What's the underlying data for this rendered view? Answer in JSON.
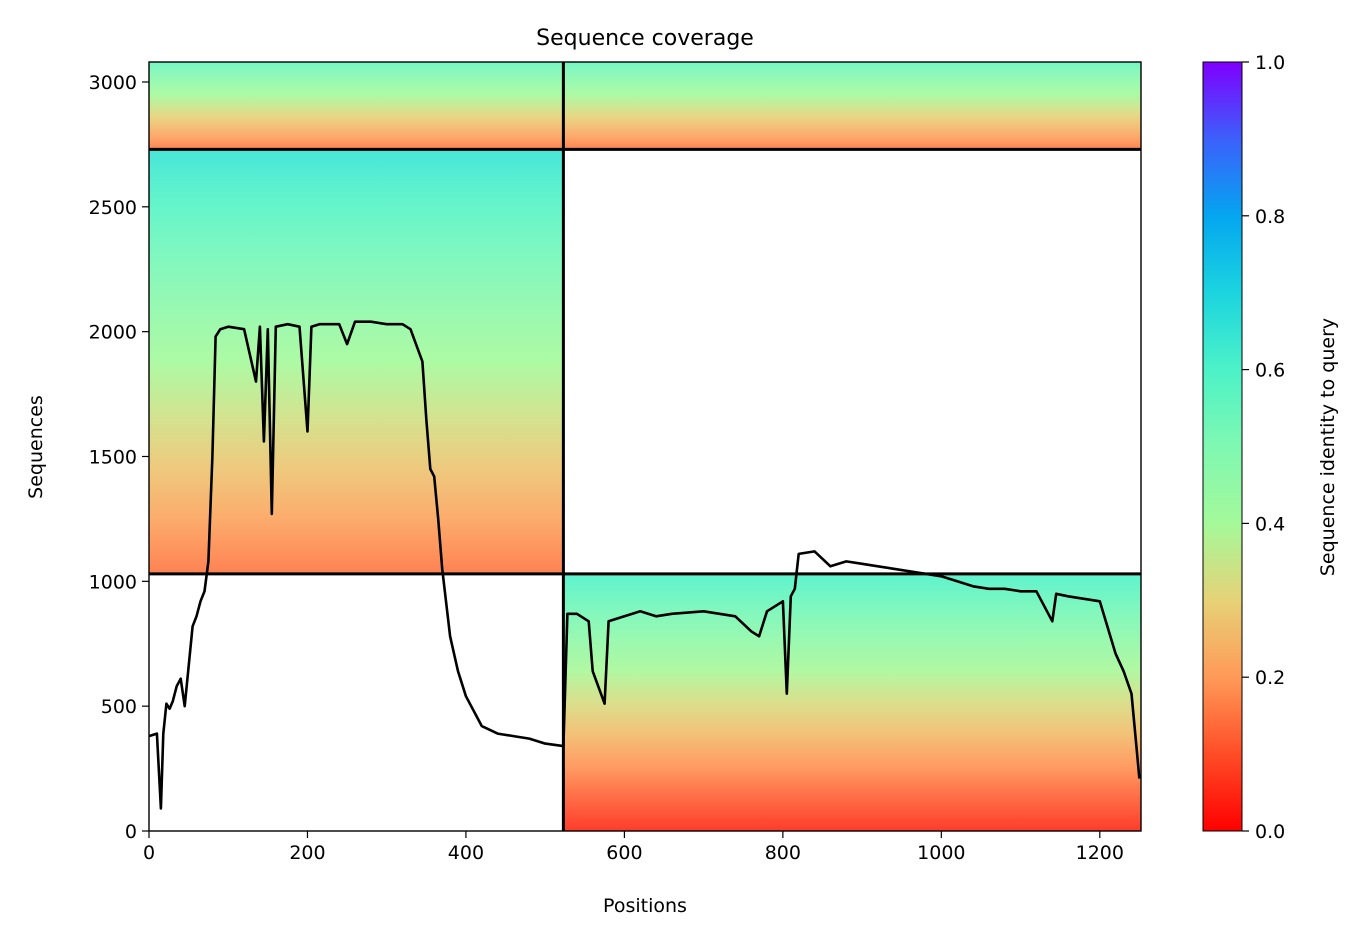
{
  "chart_data": {
    "type": "heatmap",
    "title": "Sequence coverage",
    "xlabel": "Positions",
    "ylabel": "Sequences",
    "xlim": [
      0,
      1252
    ],
    "ylim": [
      0,
      3080
    ],
    "xticks": [
      0,
      200,
      400,
      600,
      800,
      1000,
      1200
    ],
    "yticks": [
      0,
      500,
      1000,
      1500,
      2000,
      2500,
      3000
    ],
    "colorbar": {
      "label": "Sequence identity to query",
      "range": [
        0,
        1
      ],
      "ticks": [
        "0.0",
        "0.2",
        "0.4",
        "0.6",
        "0.8",
        "1.0"
      ],
      "colormap": "rainbow_r"
    },
    "divider_lines": {
      "vertical_x": [
        523
      ],
      "horizontal_y": [
        1030,
        2730
      ]
    },
    "coverage_blocks": [
      {
        "x": [
          0,
          523
        ],
        "y": [
          2730,
          3080
        ],
        "identity_top": 0.55,
        "identity_bottom": 0.15
      },
      {
        "x": [
          523,
          1252
        ],
        "y": [
          2730,
          3080
        ],
        "identity_top": 0.55,
        "identity_bottom": 0.15
      },
      {
        "x": [
          0,
          523
        ],
        "y": [
          1030,
          2730
        ],
        "identity_top": 0.65,
        "identity_bottom": 0.15
      },
      {
        "x": [
          523,
          1252
        ],
        "y": [
          0,
          1030
        ],
        "identity_top": 0.6,
        "identity_bottom": 0.05
      }
    ],
    "coverage_line": {
      "x": [
        0,
        10,
        15,
        18,
        22,
        26,
        30,
        35,
        40,
        45,
        55,
        60,
        65,
        70,
        75,
        80,
        84,
        90,
        100,
        120,
        135,
        140,
        145,
        150,
        155,
        160,
        175,
        190,
        200,
        205,
        215,
        240,
        250,
        260,
        280,
        300,
        320,
        330,
        345,
        350,
        355,
        360,
        365,
        370,
        380,
        390,
        400,
        420,
        440,
        460,
        480,
        500,
        523,
        528,
        540,
        555,
        560,
        575,
        580,
        600,
        620,
        640,
        660,
        700,
        740,
        760,
        770,
        780,
        800,
        805,
        810,
        815,
        820,
        840,
        860,
        880,
        900,
        920,
        940,
        960,
        980,
        1000,
        1020,
        1040,
        1060,
        1080,
        1100,
        1120,
        1140,
        1145,
        1160,
        1200,
        1220,
        1230,
        1240,
        1250
      ],
      "y": [
        380,
        390,
        90,
        390,
        510,
        490,
        520,
        580,
        610,
        500,
        820,
        860,
        920,
        960,
        1080,
        1500,
        1980,
        2010,
        2020,
        2010,
        1800,
        2020,
        1560,
        2010,
        1270,
        2020,
        2030,
        2020,
        1600,
        2020,
        2030,
        2030,
        1950,
        2040,
        2040,
        2030,
        2030,
        2010,
        1880,
        1650,
        1450,
        1420,
        1250,
        1050,
        780,
        640,
        540,
        420,
        390,
        380,
        370,
        350,
        340,
        870,
        870,
        840,
        640,
        510,
        840,
        860,
        880,
        860,
        870,
        880,
        860,
        800,
        780,
        880,
        920,
        550,
        940,
        970,
        1110,
        1120,
        1060,
        1080,
        1070,
        1060,
        1050,
        1040,
        1030,
        1020,
        1000,
        980,
        970,
        970,
        960,
        960,
        840,
        950,
        940,
        920,
        710,
        640,
        550,
        210
      ]
    }
  }
}
